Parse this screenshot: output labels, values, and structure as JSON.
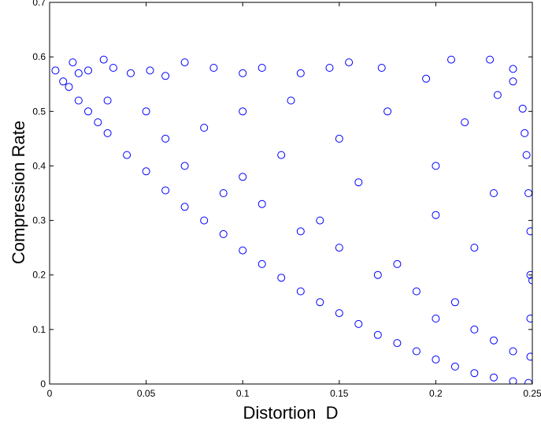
{
  "chart_data": {
    "type": "scatter",
    "title": "",
    "xlabel": "Distortion  D",
    "ylabel": "Compression Rate",
    "xlim": [
      0,
      0.25
    ],
    "ylim": [
      0,
      0.7
    ],
    "x_ticks": [
      "0",
      "0.05",
      "0.1",
      "0.15",
      "0.2",
      "0.25"
    ],
    "x_tick_values": [
      0,
      0.05,
      0.1,
      0.15,
      0.2,
      0.25
    ],
    "y_ticks": [
      "0",
      "0.1",
      "0.2",
      "0.3",
      "0.4",
      "0.5",
      "0.6",
      "0.7"
    ],
    "y_tick_values": [
      0,
      0.1,
      0.2,
      0.3,
      0.4,
      0.5,
      0.6,
      0.7
    ],
    "grid": false,
    "legend": "none",
    "marker": "circle-open",
    "marker_color": "#0000ff",
    "series": [
      {
        "values": [
          [
            0.003,
            0.575
          ],
          [
            0.007,
            0.555
          ],
          [
            0.012,
            0.59
          ],
          [
            0.015,
            0.57
          ],
          [
            0.02,
            0.575
          ],
          [
            0.028,
            0.595
          ],
          [
            0.033,
            0.58
          ],
          [
            0.042,
            0.57
          ],
          [
            0.052,
            0.575
          ],
          [
            0.06,
            0.565
          ],
          [
            0.07,
            0.59
          ],
          [
            0.085,
            0.58
          ],
          [
            0.1,
            0.57
          ],
          [
            0.11,
            0.58
          ],
          [
            0.13,
            0.57
          ],
          [
            0.145,
            0.58
          ],
          [
            0.155,
            0.59
          ],
          [
            0.172,
            0.58
          ],
          [
            0.195,
            0.56
          ],
          [
            0.208,
            0.595
          ],
          [
            0.228,
            0.595
          ],
          [
            0.24,
            0.578
          ],
          [
            0.232,
            0.53
          ],
          [
            0.24,
            0.555
          ],
          [
            0.245,
            0.505
          ],
          [
            0.01,
            0.545
          ],
          [
            0.015,
            0.52
          ],
          [
            0.02,
            0.5
          ],
          [
            0.025,
            0.48
          ],
          [
            0.03,
            0.46
          ],
          [
            0.04,
            0.42
          ],
          [
            0.05,
            0.39
          ],
          [
            0.06,
            0.355
          ],
          [
            0.07,
            0.325
          ],
          [
            0.08,
            0.3
          ],
          [
            0.09,
            0.275
          ],
          [
            0.1,
            0.245
          ],
          [
            0.11,
            0.22
          ],
          [
            0.12,
            0.195
          ],
          [
            0.13,
            0.17
          ],
          [
            0.14,
            0.15
          ],
          [
            0.15,
            0.13
          ],
          [
            0.16,
            0.11
          ],
          [
            0.17,
            0.09
          ],
          [
            0.18,
            0.075
          ],
          [
            0.19,
            0.06
          ],
          [
            0.2,
            0.045
          ],
          [
            0.21,
            0.032
          ],
          [
            0.22,
            0.02
          ],
          [
            0.23,
            0.012
          ],
          [
            0.24,
            0.005
          ],
          [
            0.248,
            0.002
          ],
          [
            0.249,
            0.05
          ],
          [
            0.249,
            0.12
          ],
          [
            0.249,
            0.2
          ],
          [
            0.249,
            0.28
          ],
          [
            0.248,
            0.35
          ],
          [
            0.247,
            0.42
          ],
          [
            0.246,
            0.46
          ],
          [
            0.25,
            0.19
          ],
          [
            0.03,
            0.52
          ],
          [
            0.05,
            0.5
          ],
          [
            0.08,
            0.47
          ],
          [
            0.12,
            0.42
          ],
          [
            0.16,
            0.37
          ],
          [
            0.2,
            0.31
          ],
          [
            0.22,
            0.25
          ],
          [
            0.06,
            0.45
          ],
          [
            0.1,
            0.38
          ],
          [
            0.14,
            0.3
          ],
          [
            0.18,
            0.22
          ],
          [
            0.21,
            0.15
          ],
          [
            0.23,
            0.08
          ],
          [
            0.07,
            0.4
          ],
          [
            0.11,
            0.33
          ],
          [
            0.15,
            0.25
          ],
          [
            0.19,
            0.17
          ],
          [
            0.22,
            0.1
          ],
          [
            0.09,
            0.35
          ],
          [
            0.13,
            0.28
          ],
          [
            0.17,
            0.2
          ],
          [
            0.2,
            0.12
          ],
          [
            0.24,
            0.06
          ],
          [
            0.1,
            0.5
          ],
          [
            0.15,
            0.45
          ],
          [
            0.2,
            0.4
          ],
          [
            0.23,
            0.35
          ],
          [
            0.125,
            0.52
          ],
          [
            0.175,
            0.5
          ],
          [
            0.215,
            0.48
          ]
        ]
      }
    ]
  }
}
